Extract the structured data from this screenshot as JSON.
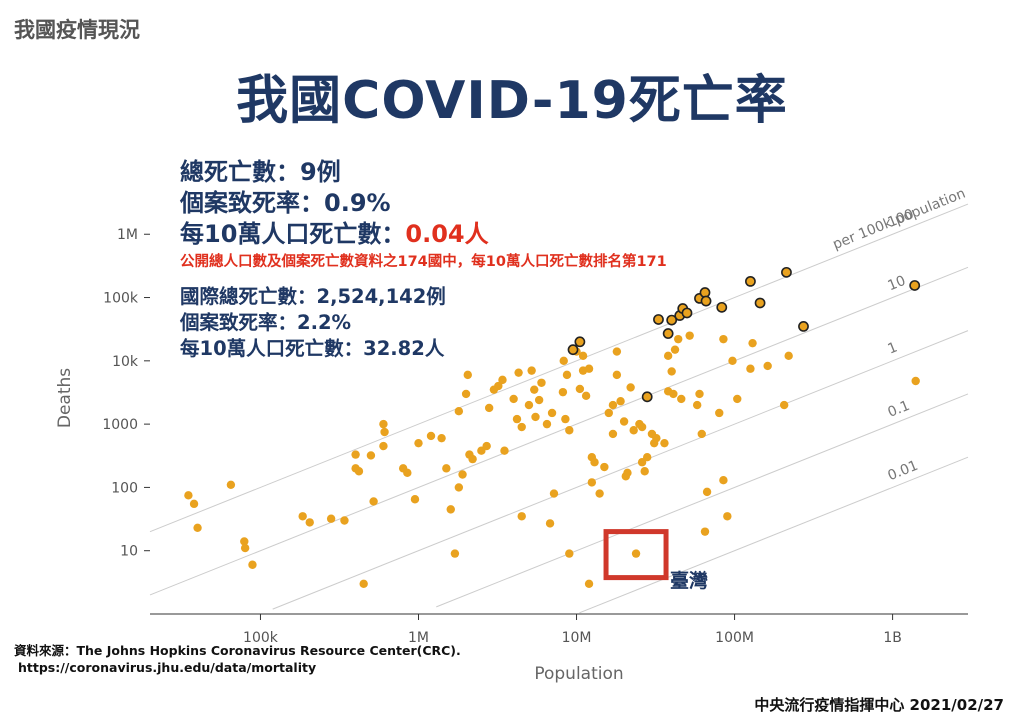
{
  "header": {
    "section_label": "我國疫情現況",
    "title": "我國COVID-19死亡率"
  },
  "taiwan_stats": {
    "total_deaths": "總死亡數：9例",
    "cfr": "個案致死率：0.9%",
    "per100k_label": "每10萬人口死亡數：",
    "per100k_value": "0.04人",
    "rank_note": "公開總人口數及個案死亡數資料之174國中，每10萬人口死亡數排名第171"
  },
  "intl_stats": {
    "total_deaths": "國際總死亡數：2,524,142例",
    "cfr": "個案致死率：2.2%",
    "per100k": "每10萬人口死亡數：32.82人"
  },
  "source": {
    "label": "資料來源：The Johns Hopkins Coronavirus Resource Center(CRC).",
    "url": "https://coronavirus.jhu.edu/data/mortality"
  },
  "footer": "中央流行疫情指揮中心 2021/02/27",
  "chart_data": {
    "type": "scatter",
    "xlabel": "Population",
    "ylabel": "Deaths",
    "x_scale": "log",
    "y_scale": "log",
    "xlim": [
      20000,
      3000000000
    ],
    "ylim": [
      1,
      5000000
    ],
    "x_ticks": [
      {
        "value": 100000,
        "label": "100k"
      },
      {
        "value": 1000000,
        "label": "1M"
      },
      {
        "value": 10000000,
        "label": "10M"
      },
      {
        "value": 100000000,
        "label": "100M"
      },
      {
        "value": 1000000000,
        "label": "1B"
      }
    ],
    "y_ticks": [
      {
        "value": 10,
        "label": "10"
      },
      {
        "value": 100,
        "label": "100"
      },
      {
        "value": 1000,
        "label": "1000"
      },
      {
        "value": 10000,
        "label": "10k"
      },
      {
        "value": 100000,
        "label": "100k"
      },
      {
        "value": 1000000,
        "label": "1M"
      }
    ],
    "reference_lines": [
      {
        "per100k": 100,
        "label": "100",
        "sublabel": "per 100k population"
      },
      {
        "per100k": 10,
        "label": "10"
      },
      {
        "per100k": 1,
        "label": "1"
      },
      {
        "per100k": 0.1,
        "label": "0.1"
      },
      {
        "per100k": 0.01,
        "label": "0.01"
      }
    ],
    "colors": {
      "point": "#e9a21f",
      "highlight_border": "#222222",
      "taiwan_box": "#d0382b",
      "ref_line": "#cccccc"
    },
    "taiwan": {
      "name": "臺灣",
      "x": 23800000,
      "y": 9
    },
    "points": [
      {
        "x": 35000,
        "y": 75
      },
      {
        "x": 38000,
        "y": 55
      },
      {
        "x": 40000,
        "y": 23
      },
      {
        "x": 65000,
        "y": 110
      },
      {
        "x": 79000,
        "y": 14
      },
      {
        "x": 80000,
        "y": 11
      },
      {
        "x": 89000,
        "y": 6
      },
      {
        "x": 185000,
        "y": 35
      },
      {
        "x": 205000,
        "y": 28
      },
      {
        "x": 280000,
        "y": 32
      },
      {
        "x": 340000,
        "y": 30
      },
      {
        "x": 400000,
        "y": 330
      },
      {
        "x": 400000,
        "y": 200
      },
      {
        "x": 420000,
        "y": 180
      },
      {
        "x": 450000,
        "y": 3
      },
      {
        "x": 500000,
        "y": 320
      },
      {
        "x": 520000,
        "y": 60
      },
      {
        "x": 600000,
        "y": 1000
      },
      {
        "x": 610000,
        "y": 750
      },
      {
        "x": 600000,
        "y": 450
      },
      {
        "x": 800000,
        "y": 200
      },
      {
        "x": 850000,
        "y": 170
      },
      {
        "x": 950000,
        "y": 65
      },
      {
        "x": 1000000,
        "y": 500
      },
      {
        "x": 1200000,
        "y": 650
      },
      {
        "x": 1400000,
        "y": 600
      },
      {
        "x": 1500000,
        "y": 200
      },
      {
        "x": 1600000,
        "y": 45
      },
      {
        "x": 1700000,
        "y": 9
      },
      {
        "x": 1800000,
        "y": 1600
      },
      {
        "x": 1800000,
        "y": 100
      },
      {
        "x": 1900000,
        "y": 160
      },
      {
        "x": 2000000,
        "y": 3000
      },
      {
        "x": 2050000,
        "y": 6000
      },
      {
        "x": 2100000,
        "y": 330
      },
      {
        "x": 2200000,
        "y": 280
      },
      {
        "x": 2500000,
        "y": 380
      },
      {
        "x": 2700000,
        "y": 450
      },
      {
        "x": 2800000,
        "y": 1800
      },
      {
        "x": 3000000,
        "y": 3500
      },
      {
        "x": 3200000,
        "y": 4000
      },
      {
        "x": 3400000,
        "y": 5000
      },
      {
        "x": 3500000,
        "y": 380
      },
      {
        "x": 4000000,
        "y": 2500
      },
      {
        "x": 4200000,
        "y": 1200
      },
      {
        "x": 4300000,
        "y": 6500
      },
      {
        "x": 4500000,
        "y": 900
      },
      {
        "x": 4500000,
        "y": 35
      },
      {
        "x": 5000000,
        "y": 2000
      },
      {
        "x": 5200000,
        "y": 7000
      },
      {
        "x": 5500000,
        "y": 1300
      },
      {
        "x": 5400000,
        "y": 3500
      },
      {
        "x": 5800000,
        "y": 2400
      },
      {
        "x": 6000000,
        "y": 4500
      },
      {
        "x": 6500000,
        "y": 1000
      },
      {
        "x": 6800000,
        "y": 27
      },
      {
        "x": 7000000,
        "y": 1500
      },
      {
        "x": 7200000,
        "y": 80
      },
      {
        "x": 8200000,
        "y": 3200
      },
      {
        "x": 8500000,
        "y": 1200
      },
      {
        "x": 8300000,
        "y": 10000
      },
      {
        "x": 8700000,
        "y": 6000
      },
      {
        "x": 9000000,
        "y": 800
      },
      {
        "x": 9000000,
        "y": 9
      },
      {
        "x": 10000000,
        "y": 14000
      },
      {
        "x": 10500000,
        "y": 3600
      },
      {
        "x": 11000000,
        "y": 7000
      },
      {
        "x": 11000000,
        "y": 12000
      },
      {
        "x": 11500000,
        "y": 2800
      },
      {
        "x": 12000000,
        "y": 7500
      },
      {
        "x": 12500000,
        "y": 120
      },
      {
        "x": 12000000,
        "y": 3
      },
      {
        "x": 12500000,
        "y": 300
      },
      {
        "x": 13000000,
        "y": 250
      },
      {
        "x": 14000000,
        "y": 80
      },
      {
        "x": 15000000,
        "y": 210
      },
      {
        "x": 16000000,
        "y": 1500
      },
      {
        "x": 17000000,
        "y": 2000
      },
      {
        "x": 17000000,
        "y": 700
      },
      {
        "x": 18000000,
        "y": 6000
      },
      {
        "x": 18000000,
        "y": 14000
      },
      {
        "x": 19000000,
        "y": 2300
      },
      {
        "x": 20000000,
        "y": 1100
      },
      {
        "x": 20500000,
        "y": 150
      },
      {
        "x": 21000000,
        "y": 170
      },
      {
        "x": 22000000,
        "y": 3800
      },
      {
        "x": 23000000,
        "y": 800
      },
      {
        "x": 25000000,
        "y": 1000
      },
      {
        "x": 26000000,
        "y": 900
      },
      {
        "x": 26000000,
        "y": 250
      },
      {
        "x": 27000000,
        "y": 180
      },
      {
        "x": 28000000,
        "y": 300
      },
      {
        "x": 30000000,
        "y": 700
      },
      {
        "x": 31000000,
        "y": 500
      },
      {
        "x": 32000000,
        "y": 600
      },
      {
        "x": 36000000,
        "y": 500
      },
      {
        "x": 38000000,
        "y": 3300
      },
      {
        "x": 38000000,
        "y": 12000
      },
      {
        "x": 40000000,
        "y": 6800
      },
      {
        "x": 41000000,
        "y": 3000
      },
      {
        "x": 42000000,
        "y": 15000
      },
      {
        "x": 44000000,
        "y": 22000
      },
      {
        "x": 46000000,
        "y": 2500
      },
      {
        "x": 52000000,
        "y": 25000
      },
      {
        "x": 58000000,
        "y": 2000
      },
      {
        "x": 60000000,
        "y": 3000
      },
      {
        "x": 62000000,
        "y": 700
      },
      {
        "x": 65000000,
        "y": 20
      },
      {
        "x": 67000000,
        "y": 85
      },
      {
        "x": 80000000,
        "y": 1500
      },
      {
        "x": 85000000,
        "y": 22000
      },
      {
        "x": 85000000,
        "y": 130
      },
      {
        "x": 90000000,
        "y": 35
      },
      {
        "x": 97000000,
        "y": 10000
      },
      {
        "x": 104000000,
        "y": 2500
      },
      {
        "x": 126000000,
        "y": 7500
      },
      {
        "x": 130000000,
        "y": 19000
      },
      {
        "x": 162000000,
        "y": 8300
      },
      {
        "x": 206000000,
        "y": 2000
      },
      {
        "x": 220000000,
        "y": 12000
      },
      {
        "x": 1400000000,
        "y": 4800
      }
    ],
    "highlighted_points": [
      {
        "x": 9500000,
        "y": 15000
      },
      {
        "x": 10500000,
        "y": 20000
      },
      {
        "x": 28000000,
        "y": 2700
      },
      {
        "x": 33000000,
        "y": 45000
      },
      {
        "x": 38000000,
        "y": 27000
      },
      {
        "x": 40000000,
        "y": 44000
      },
      {
        "x": 45000000,
        "y": 52000
      },
      {
        "x": 47000000,
        "y": 67000
      },
      {
        "x": 50000000,
        "y": 57000
      },
      {
        "x": 60000000,
        "y": 97000
      },
      {
        "x": 65000000,
        "y": 120000
      },
      {
        "x": 66000000,
        "y": 88000
      },
      {
        "x": 83000000,
        "y": 70000
      },
      {
        "x": 126000000,
        "y": 180000
      },
      {
        "x": 145000000,
        "y": 82000
      },
      {
        "x": 213000000,
        "y": 250000
      },
      {
        "x": 273000000,
        "y": 35000
      },
      {
        "x": 1380000000,
        "y": 155000
      }
    ]
  }
}
